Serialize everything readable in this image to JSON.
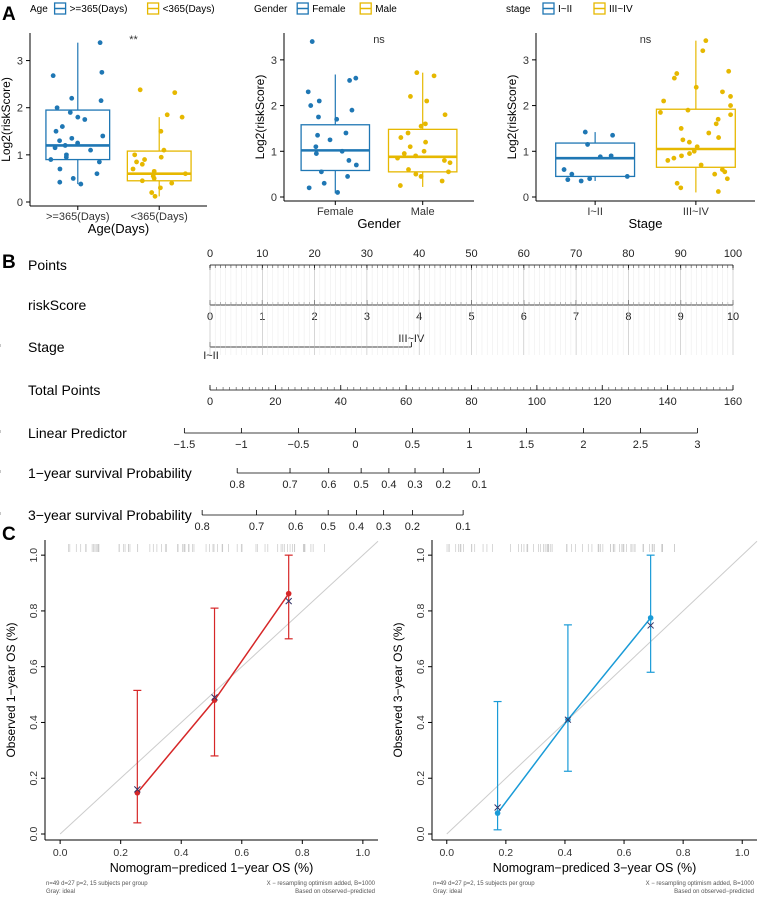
{
  "colors": {
    "blue": "#1f77b4",
    "gold": "#e6b800",
    "red": "#d62728",
    "cyan": "#1a9bd7",
    "ideal": "#cccccc",
    "gray": "#555555",
    "tick": "#333333"
  },
  "chart_data": [
    {
      "panel": "A",
      "type": "box",
      "legend_title": "Age",
      "legend": [
        ">=365(Days)",
        "<365(Days)"
      ],
      "categories": [
        ">=365(Days)",
        "<365(Days)"
      ],
      "xlabel": "Age(Days)",
      "ylabel": "Log2(riskScore)",
      "ylim": [
        0,
        3.5
      ],
      "yticks": [
        0,
        1,
        2,
        3
      ],
      "signif": "**",
      "boxes": [
        {
          "q1": 0.9,
          "median": 1.2,
          "q3": 1.95,
          "lo": 0.38,
          "hi": 3.38,
          "points": [
            3.38,
            2.75,
            2.68,
            2.2,
            2.15,
            2.0,
            1.9,
            1.8,
            1.75,
            1.6,
            1.5,
            1.4,
            1.35,
            1.3,
            1.25,
            1.2,
            1.15,
            1.1,
            1.0,
            0.95,
            0.9,
            0.85,
            0.7,
            0.6,
            0.5,
            0.42,
            0.38
          ]
        },
        {
          "q1": 0.45,
          "median": 0.6,
          "q3": 1.08,
          "lo": 0.12,
          "hi": 1.8,
          "points": [
            2.38,
            2.32,
            1.85,
            1.8,
            1.5,
            1.1,
            1.0,
            0.95,
            0.9,
            0.85,
            0.8,
            0.7,
            0.65,
            0.6,
            0.55,
            0.5,
            0.45,
            0.4,
            0.3,
            0.2,
            0.12
          ]
        }
      ]
    },
    {
      "panel": "A2",
      "type": "box",
      "legend_title": "Gender",
      "legend": [
        "Female",
        "Male"
      ],
      "categories": [
        "Female",
        "Male"
      ],
      "xlabel": "Gender",
      "ylabel": "Log2(riskScore)",
      "ylim": [
        0,
        3.5
      ],
      "yticks": [
        0,
        1,
        2,
        3
      ],
      "signif": "ns",
      "boxes": [
        {
          "q1": 0.58,
          "median": 1.02,
          "q3": 1.58,
          "lo": 0.08,
          "hi": 2.68,
          "points": [
            3.4,
            2.6,
            2.55,
            2.3,
            2.1,
            2.0,
            1.9,
            1.75,
            1.7,
            1.4,
            1.35,
            1.25,
            1.1,
            1.0,
            0.95,
            0.8,
            0.7,
            0.55,
            0.45,
            0.3,
            0.2,
            0.1
          ]
        },
        {
          "q1": 0.55,
          "median": 0.88,
          "q3": 1.48,
          "lo": 0.22,
          "hi": 2.72,
          "points": [
            2.72,
            2.65,
            2.2,
            2.1,
            1.8,
            1.6,
            1.55,
            1.4,
            1.3,
            1.2,
            1.1,
            1.0,
            0.95,
            0.9,
            0.85,
            0.8,
            0.75,
            0.6,
            0.55,
            0.5,
            0.45,
            0.35,
            0.25
          ]
        }
      ]
    },
    {
      "panel": "A3",
      "type": "box",
      "legend_title": "stage",
      "legend": [
        "I~II",
        "III~IV"
      ],
      "categories": [
        "I~II",
        "III~IV"
      ],
      "xlabel": "Stage",
      "ylabel": "Log2(riskScore)",
      "ylim": [
        0,
        3.5
      ],
      "yticks": [
        0,
        1,
        2,
        3
      ],
      "signif": "ns",
      "boxes": [
        {
          "q1": 0.45,
          "median": 0.85,
          "q3": 1.18,
          "lo": 0.35,
          "hi": 1.42,
          "points": [
            1.42,
            1.35,
            1.15,
            0.9,
            0.88,
            0.6,
            0.5,
            0.45,
            0.4,
            0.38,
            0.35
          ]
        },
        {
          "q1": 0.65,
          "median": 1.05,
          "q3": 1.92,
          "lo": 0.1,
          "hi": 3.42,
          "points": [
            3.42,
            3.2,
            2.75,
            2.7,
            2.6,
            2.4,
            2.3,
            2.2,
            2.1,
            2.0,
            1.9,
            1.85,
            1.8,
            1.7,
            1.6,
            1.5,
            1.4,
            1.3,
            1.25,
            1.2,
            1.1,
            1.0,
            0.95,
            0.9,
            0.85,
            0.8,
            0.7,
            0.6,
            0.55,
            0.5,
            0.4,
            0.3,
            0.2,
            0.12
          ]
        }
      ]
    },
    {
      "panel": "B",
      "type": "nomogram",
      "rows": [
        {
          "label": "Points",
          "ticks": [
            "0",
            "10",
            "20",
            "30",
            "40",
            "50",
            "60",
            "70",
            "80",
            "90",
            "100"
          ],
          "range": [
            0,
            100
          ],
          "labels_above": true
        },
        {
          "label": "riskScore",
          "ticks": [
            "0",
            "1",
            "2",
            "3",
            "4",
            "5",
            "6",
            "7",
            "8",
            "9",
            "10"
          ],
          "range": [
            0,
            10
          ],
          "labels_above": false
        },
        {
          "label": "Stage",
          "ticks": [
            "I~II",
            "III~IV"
          ],
          "positions": [
            0,
            38.5
          ],
          "labels_above": false
        },
        {
          "label": "Total Points",
          "ticks": [
            "0",
            "20",
            "40",
            "60",
            "80",
            "100",
            "120",
            "140",
            "160"
          ],
          "range": [
            0,
            160
          ],
          "labels_above": false
        },
        {
          "label": "Linear Predictor",
          "ticks": [
            "−1.5",
            "−1",
            "−0.5",
            "0",
            "0.5",
            "1",
            "1.5",
            "2",
            "2.5",
            "3"
          ],
          "positions": [
            -4.9,
            6.0,
            16.9,
            27.8,
            38.7,
            49.6,
            60.5,
            71.4,
            82.3,
            93.2
          ],
          "labels_above": false
        },
        {
          "label": "1−year survival Probability",
          "ticks": [
            "0.8",
            "0.7",
            "0.6",
            "0.5",
            "0.4",
            "0.3",
            "0.2",
            "0.1"
          ],
          "positions": [
            5.2,
            15.3,
            22.7,
            28.9,
            34.2,
            39.2,
            44.6,
            51.5
          ],
          "labels_above": false
        },
        {
          "label": "3−year survival Probability",
          "ticks": [
            "0.8",
            "0.7",
            "0.6",
            "0.5",
            "0.4",
            "0.3",
            "0.2",
            "0.1"
          ],
          "positions": [
            -1.5,
            8.9,
            16.4,
            22.6,
            28.0,
            33.2,
            38.7,
            48.4
          ],
          "labels_above": false
        }
      ]
    },
    {
      "panel": "C",
      "type": "calibration",
      "xlabel": "Nomogram−prediced 1−year OS (%)",
      "ylabel": "Observed 1−year OS (%)",
      "xlim": [
        -0.05,
        1.05
      ],
      "ylim": [
        0,
        1.04
      ],
      "ticks": [
        "0.0",
        "0.2",
        "0.4",
        "0.6",
        "0.8",
        "1.0"
      ],
      "observed": [
        {
          "x": 0.255,
          "y": 0.148,
          "lo": 0.04,
          "hi": 0.515
        },
        {
          "x": 0.51,
          "y": 0.48,
          "lo": 0.28,
          "hi": 0.81
        },
        {
          "x": 0.755,
          "y": 0.862,
          "lo": 0.7,
          "hi": 1.0
        }
      ],
      "corrected": [
        {
          "x": 0.255,
          "y": 0.16
        },
        {
          "x": 0.51,
          "y": 0.49
        },
        {
          "x": 0.755,
          "y": 0.835
        }
      ],
      "footnote_left": [
        "n=49 d=27 p=2, 15 subjects per group",
        "Gray: ideal"
      ],
      "footnote_right": [
        "X − resampling optimism added, B=1000",
        "Based on observed−predicted"
      ]
    },
    {
      "panel": "C2",
      "type": "calibration",
      "xlabel": "Nomogram−prediced  3−year OS (%)",
      "ylabel": "Observed 3−year OS (%)",
      "xlim": [
        -0.05,
        1.05
      ],
      "ylim": [
        0,
        1.04
      ],
      "ticks": [
        "0.0",
        "0.2",
        "0.4",
        "0.6",
        "0.8",
        "1.0"
      ],
      "observed": [
        {
          "x": 0.172,
          "y": 0.075,
          "lo": 0.015,
          "hi": 0.475
        },
        {
          "x": 0.41,
          "y": 0.41,
          "lo": 0.225,
          "hi": 0.75
        },
        {
          "x": 0.69,
          "y": 0.775,
          "lo": 0.58,
          "hi": 1.0
        }
      ],
      "corrected": [
        {
          "x": 0.172,
          "y": 0.095
        },
        {
          "x": 0.41,
          "y": 0.41
        },
        {
          "x": 0.69,
          "y": 0.748
        }
      ],
      "footnote_left": [
        "n=49 d=27 p=2, 15 subjects per group",
        "Gray: ideal"
      ],
      "footnote_right": [
        "X − resampling optimism added, B=1000",
        "Based on observed−predicted"
      ]
    }
  ],
  "panel_labels": [
    "A",
    "B",
    "C"
  ]
}
